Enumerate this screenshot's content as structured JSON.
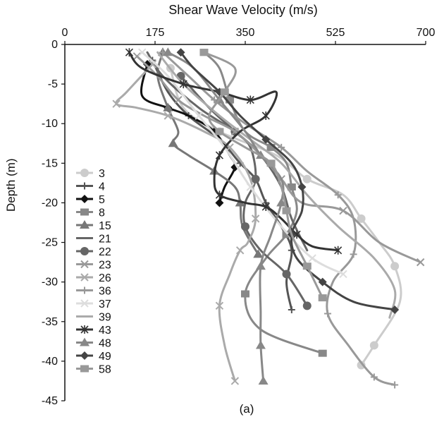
{
  "chart_data": {
    "type": "line",
    "title": "Shear Wave Velocity (m/s)",
    "xlabel": "Shear Wave Velocity (m/s)",
    "ylabel": "Depth (m)",
    "caption": "(a)",
    "x_axis_position": "top",
    "xlim": [
      0,
      700
    ],
    "ylim": [
      -45,
      0
    ],
    "x_ticks": [
      0,
      175,
      350,
      525,
      700
    ],
    "y_ticks": [
      0,
      -5,
      -10,
      -15,
      -20,
      -25,
      -30,
      -35,
      -40,
      -45
    ],
    "grid": false,
    "legend_position": "left-middle",
    "series": [
      {
        "name": "3",
        "color": "#cccccc",
        "marker": "circle",
        "points": [
          [
            205,
            -3
          ],
          [
            230,
            -8
          ],
          [
            300,
            -11
          ],
          [
            410,
            -14
          ],
          [
            470,
            -17
          ],
          [
            540,
            -19
          ],
          [
            575,
            -22
          ],
          [
            610,
            -25
          ],
          [
            640,
            -28
          ],
          [
            650,
            -32.5
          ],
          [
            600,
            -38
          ],
          [
            575,
            -40.5
          ]
        ]
      },
      {
        "name": "4",
        "color": "#555555",
        "marker": "plus",
        "points": [
          [
            170,
            -2
          ],
          [
            200,
            -6
          ],
          [
            240,
            -9
          ],
          [
            300,
            -12
          ],
          [
            340,
            -15
          ],
          [
            370,
            -17
          ],
          [
            390,
            -20
          ],
          [
            420,
            -23
          ],
          [
            440,
            -26
          ],
          [
            430,
            -30
          ],
          [
            440,
            -33.5
          ]
        ]
      },
      {
        "name": "5",
        "color": "#111111",
        "marker": "diamond",
        "points": [
          [
            160,
            -2.5
          ],
          [
            150,
            -6.5
          ],
          [
            200,
            -8
          ],
          [
            240,
            -9
          ],
          [
            290,
            -11
          ],
          [
            320,
            -14
          ],
          [
            330,
            -15.5
          ],
          [
            310,
            -18
          ],
          [
            300,
            -20
          ]
        ]
      },
      {
        "name": "8",
        "color": "#888888",
        "marker": "square",
        "points": [
          [
            270,
            -1
          ],
          [
            300,
            -3
          ],
          [
            320,
            -7
          ],
          [
            350,
            -11
          ],
          [
            400,
            -13
          ],
          [
            430,
            -15
          ],
          [
            440,
            -18
          ],
          [
            450,
            -21
          ],
          [
            430,
            -24
          ],
          [
            390,
            -27
          ],
          [
            350,
            -31.5
          ],
          [
            380,
            -36
          ],
          [
            500,
            -39
          ]
        ]
      },
      {
        "name": "15",
        "color": "#777777",
        "marker": "triangle",
        "points": [
          [
            190,
            -1
          ],
          [
            180,
            -4
          ],
          [
            200,
            -8
          ],
          [
            220,
            -11
          ],
          [
            210,
            -12.5
          ],
          [
            240,
            -14
          ],
          [
            290,
            -16
          ],
          [
            330,
            -18
          ],
          [
            340,
            -20
          ],
          [
            345,
            -23
          ],
          [
            375,
            -26.5
          ]
        ]
      },
      {
        "name": "21",
        "color": "#666666",
        "marker": "none",
        "points": [
          [
            160,
            -1
          ],
          [
            190,
            -4
          ],
          [
            260,
            -8
          ],
          [
            330,
            -11
          ],
          [
            380,
            -14
          ],
          [
            420,
            -18
          ],
          [
            440,
            -22
          ],
          [
            470,
            -26
          ]
        ]
      },
      {
        "name": "22",
        "color": "#666666",
        "marker": "circle",
        "points": [
          [
            225,
            -4
          ],
          [
            280,
            -8
          ],
          [
            330,
            -11
          ],
          [
            360,
            -13
          ],
          [
            370,
            -17
          ],
          [
            350,
            -20
          ],
          [
            350,
            -23
          ],
          [
            380,
            -26
          ],
          [
            430,
            -29
          ],
          [
            470,
            -33
          ]
        ]
      },
      {
        "name": "23",
        "color": "#999999",
        "marker": "x",
        "points": [
          [
            140,
            -1.5
          ],
          [
            180,
            -4
          ],
          [
            220,
            -7
          ],
          [
            270,
            -9
          ],
          [
            330,
            -11
          ],
          [
            380,
            -14
          ],
          [
            420,
            -17
          ],
          [
            460,
            -20
          ],
          [
            540,
            -21
          ],
          [
            610,
            -25
          ],
          [
            690,
            -27.5
          ]
        ]
      },
      {
        "name": "26",
        "color": "#aaaaaa",
        "marker": "x",
        "points": [
          [
            170,
            -2.5
          ],
          [
            120,
            -6
          ],
          [
            100,
            -7.5
          ],
          [
            140,
            -8
          ],
          [
            200,
            -9
          ],
          [
            270,
            -11
          ],
          [
            320,
            -13
          ],
          [
            360,
            -17
          ],
          [
            370,
            -22
          ],
          [
            355,
            -25
          ],
          [
            340,
            -26
          ],
          [
            320,
            -29
          ],
          [
            300,
            -33
          ],
          [
            310,
            -38
          ],
          [
            330,
            -42.5
          ]
        ]
      },
      {
        "name": "36",
        "color": "#999999",
        "marker": "plus",
        "points": [
          [
            190,
            -1
          ],
          [
            240,
            -4
          ],
          [
            290,
            -7
          ],
          [
            350,
            -10
          ],
          [
            420,
            -13
          ],
          [
            470,
            -16
          ],
          [
            530,
            -19
          ],
          [
            560,
            -22
          ],
          [
            560,
            -26.5
          ],
          [
            520,
            -30
          ],
          [
            510,
            -34
          ],
          [
            550,
            -38
          ],
          [
            600,
            -42
          ],
          [
            640,
            -43
          ]
        ]
      },
      {
        "name": "37",
        "color": "#dddddd",
        "marker": "x",
        "points": [
          [
            150,
            -1
          ],
          [
            200,
            -4
          ],
          [
            260,
            -9
          ],
          [
            310,
            -13
          ],
          [
            360,
            -18
          ],
          [
            420,
            -23
          ],
          [
            480,
            -27
          ],
          [
            540,
            -29
          ]
        ]
      },
      {
        "name": "39",
        "color": "#aaaaaa",
        "marker": "none",
        "points": [
          [
            180,
            -1
          ],
          [
            230,
            -5
          ],
          [
            300,
            -9
          ],
          [
            360,
            -12
          ],
          [
            420,
            -15
          ],
          [
            470,
            -19
          ],
          [
            530,
            -23
          ],
          [
            600,
            -27
          ],
          [
            640,
            -31
          ],
          [
            630,
            -34.5
          ]
        ]
      },
      {
        "name": "43",
        "color": "#333333",
        "marker": "star",
        "points": [
          [
            125,
            -1
          ],
          [
            150,
            -3
          ],
          [
            230,
            -5
          ],
          [
            300,
            -6
          ],
          [
            360,
            -7
          ],
          [
            410,
            -6
          ],
          [
            390,
            -9
          ],
          [
            340,
            -11
          ],
          [
            300,
            -14
          ],
          [
            290,
            -17
          ],
          [
            300,
            -19
          ],
          [
            350,
            -20
          ],
          [
            390,
            -20.5
          ],
          [
            420,
            -22
          ],
          [
            450,
            -24
          ],
          [
            480,
            -25.5
          ],
          [
            530,
            -26
          ]
        ]
      },
      {
        "name": "48",
        "color": "#888888",
        "marker": "triangle",
        "points": [
          [
            200,
            -1
          ],
          [
            250,
            -3
          ],
          [
            300,
            -7
          ],
          [
            350,
            -11
          ],
          [
            380,
            -14
          ],
          [
            420,
            -17
          ],
          [
            420,
            -20
          ],
          [
            400,
            -24
          ],
          [
            380,
            -28
          ],
          [
            380,
            -34
          ],
          [
            380,
            -38
          ],
          [
            385,
            -42.5
          ]
        ]
      },
      {
        "name": "49",
        "color": "#444444",
        "marker": "diamond",
        "points": [
          [
            225,
            -1
          ],
          [
            250,
            -3
          ],
          [
            300,
            -6
          ],
          [
            340,
            -9
          ],
          [
            390,
            -12
          ],
          [
            440,
            -15
          ],
          [
            460,
            -18
          ],
          [
            460,
            -21
          ],
          [
            440,
            -24
          ],
          [
            450,
            -27
          ],
          [
            500,
            -30
          ],
          [
            560,
            -32.5
          ],
          [
            640,
            -33.5
          ]
        ]
      },
      {
        "name": "58",
        "color": "#999999",
        "marker": "square",
        "points": [
          [
            270,
            -1
          ],
          [
            330,
            -3
          ],
          [
            310,
            -6
          ],
          [
            280,
            -9
          ],
          [
            300,
            -11
          ],
          [
            350,
            -13
          ],
          [
            400,
            -15
          ],
          [
            420,
            -18
          ],
          [
            430,
            -21
          ],
          [
            440,
            -24
          ],
          [
            470,
            -28
          ],
          [
            500,
            -32
          ]
        ]
      }
    ]
  }
}
